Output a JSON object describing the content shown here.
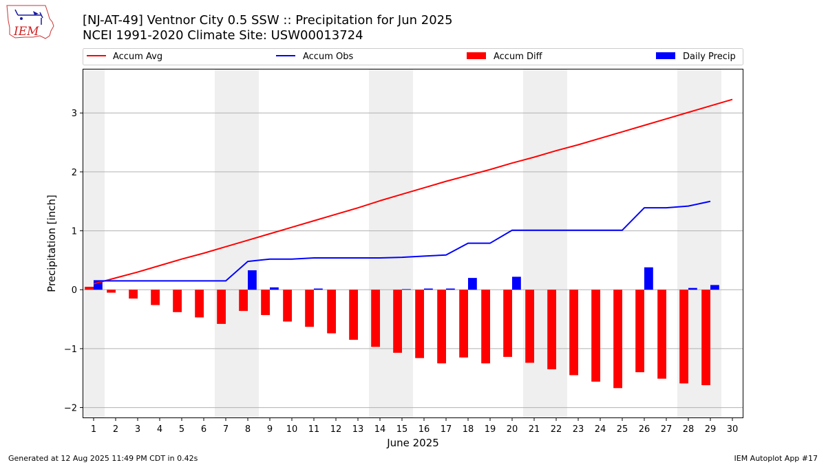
{
  "header": {
    "title_line1": "[NJ-AT-49] Ventnor City 0.5 SSW :: Precipitation for Jun 2025",
    "title_line2": "NCEI 1991-2020 Climate Site: USW00013724"
  },
  "logo": {
    "text": "IEM"
  },
  "footer": {
    "left": "Generated at 12 Aug 2025 11:49 PM CDT in 0.42s",
    "right": "IEM Autoplot App #17"
  },
  "colors": {
    "accum_avg": "#ff0000",
    "accum_obs": "#0000ff",
    "accum_diff": "#ff0000",
    "daily_precip": "#0000ff",
    "weekend_shade": "#efefef",
    "grid": "#b0b0b0"
  },
  "chart_data": {
    "type": "bar",
    "xlabel": "June 2025",
    "ylabel": "Precipitation [inch]",
    "xlim": [
      0.5,
      30.5
    ],
    "ylim": [
      -2.18,
      3.75
    ],
    "yticks": [
      -2,
      -1,
      0,
      1,
      2,
      3
    ],
    "ytick_labels": [
      "−2",
      "−1",
      "0",
      "1",
      "2",
      "3"
    ],
    "xticks": [
      1,
      2,
      3,
      4,
      5,
      6,
      7,
      8,
      9,
      10,
      11,
      12,
      13,
      14,
      15,
      16,
      17,
      18,
      19,
      20,
      21,
      22,
      23,
      24,
      25,
      26,
      27,
      28,
      29,
      30
    ],
    "grid": "horizontal",
    "legend": {
      "placement": "top",
      "entries": [
        "Accum Avg",
        "Accum Obs",
        "Accum Diff",
        "Daily Precip"
      ]
    },
    "weekend_spans": [
      [
        0.5,
        1.5
      ],
      [
        6.5,
        8.5
      ],
      [
        13.5,
        15.5
      ],
      [
        20.5,
        22.5
      ],
      [
        27.5,
        29.5
      ]
    ],
    "series": [
      {
        "name": "Accum Avg",
        "kind": "line",
        "x": [
          1,
          2,
          3,
          4,
          5,
          6,
          7,
          8,
          9,
          10,
          11,
          12,
          13,
          14,
          15,
          16,
          17,
          18,
          19,
          20,
          21,
          22,
          23,
          24,
          25,
          26,
          27,
          28,
          29,
          30
        ],
        "values": [
          0.1,
          0.2,
          0.3,
          0.41,
          0.52,
          0.62,
          0.73,
          0.84,
          0.95,
          1.06,
          1.17,
          1.28,
          1.39,
          1.51,
          1.62,
          1.73,
          1.84,
          1.94,
          2.04,
          2.15,
          2.25,
          2.36,
          2.46,
          2.57,
          2.68,
          2.79,
          2.9,
          3.01,
          3.12,
          3.23
        ]
      },
      {
        "name": "Accum Obs",
        "kind": "line",
        "x": [
          1,
          2,
          3,
          4,
          5,
          6,
          7,
          8,
          9,
          10,
          11,
          12,
          13,
          14,
          15,
          16,
          17,
          18,
          19,
          20,
          21,
          22,
          23,
          24,
          25,
          26,
          27,
          28,
          29
        ],
        "values": [
          0.15,
          0.15,
          0.15,
          0.15,
          0.15,
          0.15,
          0.15,
          0.48,
          0.52,
          0.52,
          0.54,
          0.54,
          0.54,
          0.54,
          0.55,
          0.57,
          0.59,
          0.79,
          0.79,
          1.01,
          1.01,
          1.01,
          1.01,
          1.01,
          1.01,
          1.39,
          1.39,
          1.42,
          1.5
        ]
      },
      {
        "name": "Accum Diff",
        "kind": "bar",
        "x": [
          1,
          2,
          3,
          4,
          5,
          6,
          7,
          8,
          9,
          10,
          11,
          12,
          13,
          14,
          15,
          16,
          17,
          18,
          19,
          20,
          21,
          22,
          23,
          24,
          25,
          26,
          27,
          28,
          29
        ],
        "values": [
          0.05,
          -0.05,
          -0.15,
          -0.26,
          -0.38,
          -0.47,
          -0.58,
          -0.36,
          -0.43,
          -0.54,
          -0.63,
          -0.74,
          -0.85,
          -0.97,
          -1.07,
          -1.16,
          -1.25,
          -1.15,
          -1.25,
          -1.14,
          -1.24,
          -1.35,
          -1.45,
          -1.56,
          -1.67,
          -1.4,
          -1.51,
          -1.59,
          -1.62
        ]
      },
      {
        "name": "Daily Precip",
        "kind": "bar",
        "x": [
          1,
          8,
          9,
          11,
          15,
          16,
          17,
          18,
          20,
          26,
          28,
          29
        ],
        "values": [
          0.15,
          0.33,
          0.04,
          0.02,
          0.01,
          0.02,
          0.02,
          0.2,
          0.22,
          0.38,
          0.03,
          0.08
        ]
      }
    ]
  }
}
